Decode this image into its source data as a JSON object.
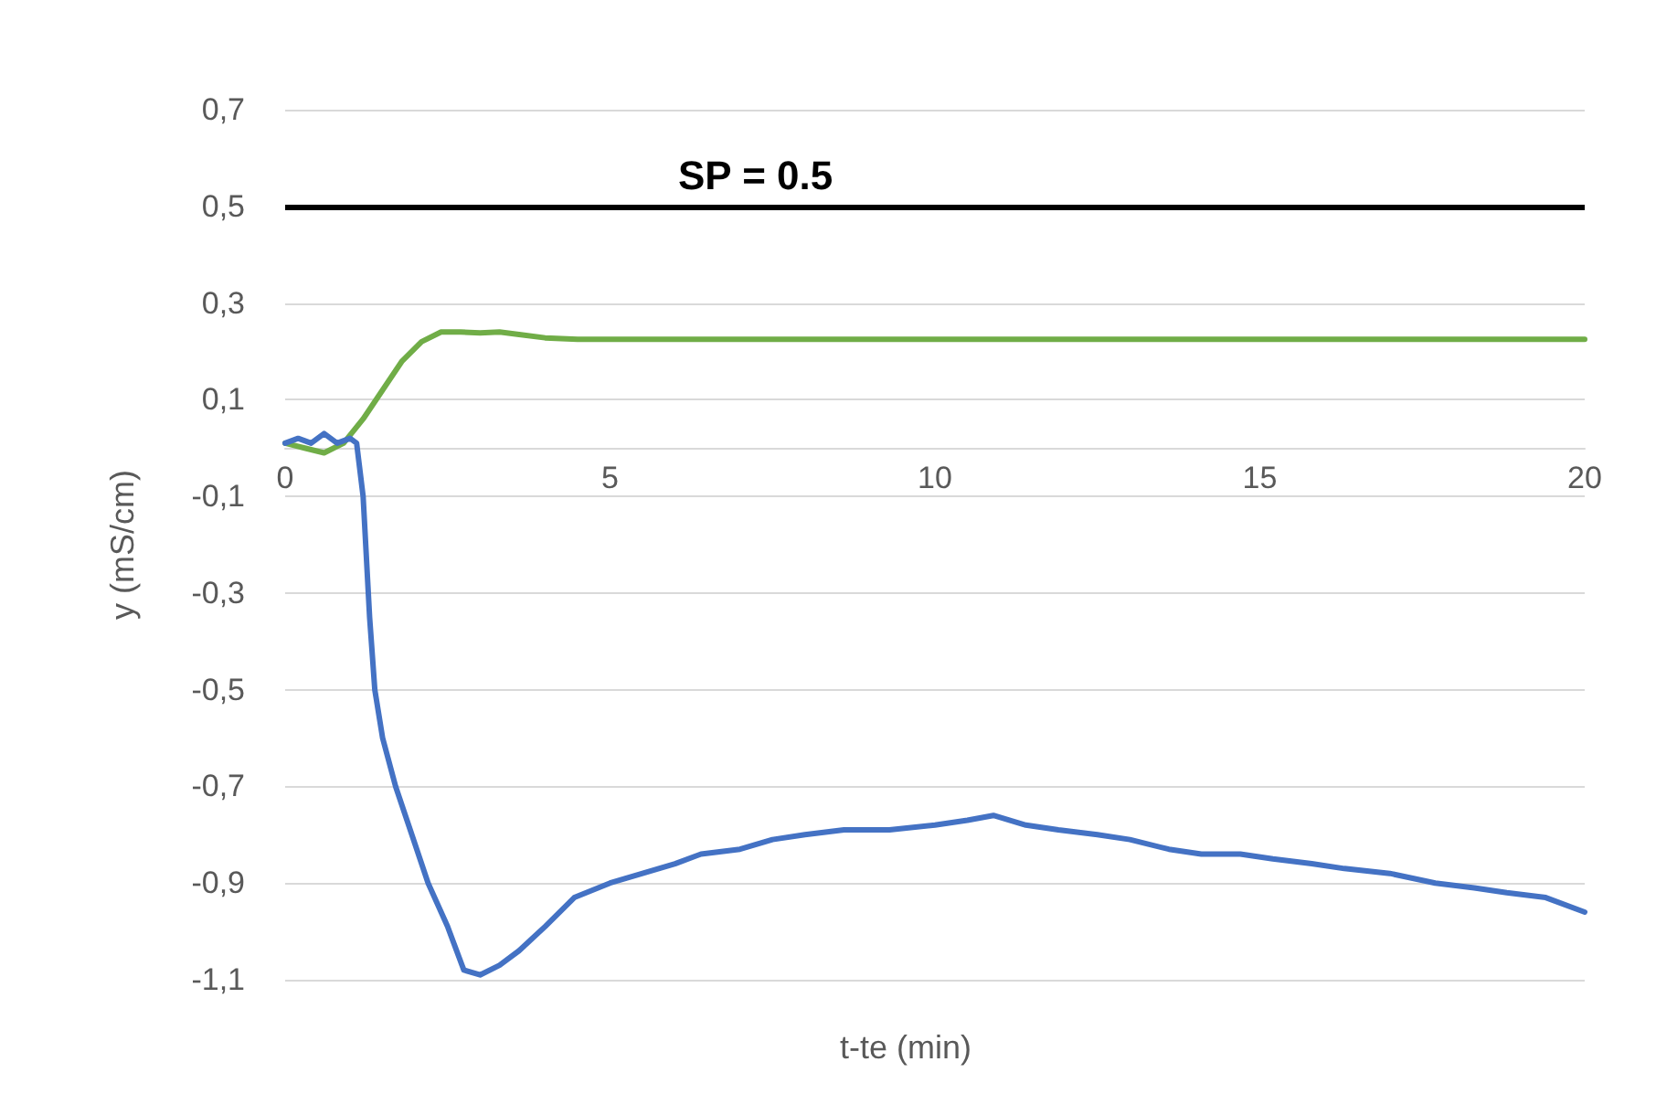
{
  "chart_data": {
    "type": "line",
    "xlabel": "t-te (min)",
    "ylabel": "y (mS/cm)",
    "xlim": [
      0,
      20
    ],
    "xticks": [
      0,
      5,
      10,
      15,
      20
    ],
    "ylim": [
      -1.1,
      0.7
    ],
    "yticks": [
      {
        "value": -1.1,
        "label": "-1,1"
      },
      {
        "value": -0.9,
        "label": "-0,9"
      },
      {
        "value": -0.7,
        "label": "-0,7"
      },
      {
        "value": -0.5,
        "label": "-0,5"
      },
      {
        "value": -0.3,
        "label": "-0,3"
      },
      {
        "value": -0.1,
        "label": "-0,1"
      },
      {
        "value": 0.1,
        "label": "0,1"
      },
      {
        "value": 0.3,
        "label": "0,3"
      },
      {
        "value": 0.5,
        "label": "0,5"
      },
      {
        "value": 0.7,
        "label": "0,7"
      }
    ],
    "grid": "y",
    "marker": "none",
    "line_style": "solid",
    "ref_lines": [
      {
        "axis": "y",
        "value": 0.5,
        "label": "SP = 0.5",
        "color": "#000000"
      }
    ],
    "series": [
      {
        "color": "#70ad47",
        "x": [
          0,
          0.3,
          0.6,
          0.9,
          1.2,
          1.5,
          1.8,
          2.1,
          2.4,
          2.7,
          3.0,
          3.3,
          3.6,
          4.0,
          4.5,
          5,
          7,
          10,
          15,
          20
        ],
        "values": [
          0.01,
          0.0,
          -0.01,
          0.01,
          0.06,
          0.12,
          0.18,
          0.22,
          0.24,
          0.24,
          0.238,
          0.24,
          0.235,
          0.228,
          0.225,
          0.225,
          0.225,
          0.225,
          0.225,
          0.225
        ]
      },
      {
        "color": "#4472c4",
        "x": [
          0,
          0.2,
          0.4,
          0.6,
          0.8,
          1.0,
          1.1,
          1.2,
          1.3,
          1.38,
          1.5,
          1.7,
          1.9,
          2.2,
          2.5,
          2.75,
          3.0,
          3.3,
          3.6,
          4.0,
          4.45,
          5.0,
          5.5,
          6.0,
          6.4,
          7.0,
          7.5,
          8.0,
          8.6,
          9.3,
          10.0,
          10.5,
          10.9,
          11.4,
          11.9,
          12.5,
          13.0,
          13.6,
          14.1,
          14.7,
          15.2,
          15.8,
          16.3,
          17.0,
          17.7,
          18.3,
          18.8,
          19.4,
          20.0
        ],
        "values": [
          0.01,
          0.02,
          0.01,
          0.03,
          0.01,
          0.02,
          0.01,
          -0.1,
          -0.35,
          -0.5,
          -0.6,
          -0.7,
          -0.78,
          -0.9,
          -0.99,
          -1.08,
          -1.09,
          -1.07,
          -1.04,
          -0.99,
          -0.93,
          -0.9,
          -0.88,
          -0.86,
          -0.84,
          -0.83,
          -0.81,
          -0.8,
          -0.79,
          -0.79,
          -0.78,
          -0.77,
          -0.76,
          -0.78,
          -0.79,
          -0.8,
          -0.81,
          -0.83,
          -0.84,
          -0.84,
          -0.85,
          -0.86,
          -0.87,
          -0.88,
          -0.9,
          -0.91,
          -0.92,
          -0.93,
          -0.96
        ]
      }
    ]
  }
}
